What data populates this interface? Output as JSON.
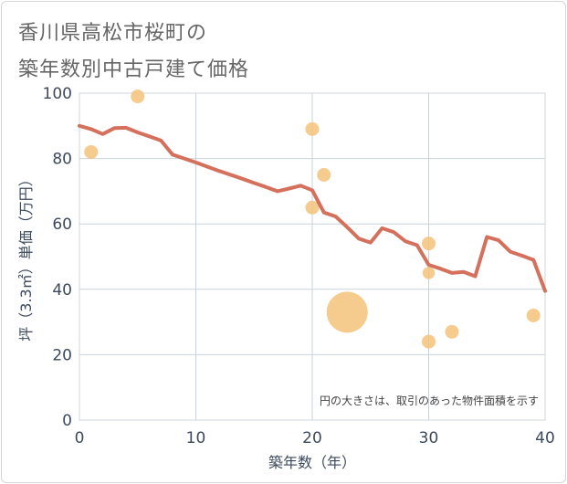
{
  "chart_data": {
    "type": "scatter+line",
    "title_line1": "香川県高松市桜町の",
    "title_line2": "築年数別中古戸建て価格",
    "xlabel": "築年数（年）",
    "ylabel": "坪（3.3㎡）単価（万円）",
    "xlim": [
      0,
      40
    ],
    "ylim": [
      0,
      100
    ],
    "xticks": [
      0,
      10,
      20,
      30,
      40
    ],
    "yticks": [
      0,
      20,
      40,
      60,
      80,
      100
    ],
    "grid": true,
    "annotation": "円の大きさは、取引のあった物件面積を示す",
    "colors": {
      "line": "#d4705c",
      "points": "#f5c27a"
    },
    "points": [
      {
        "x": 1,
        "y": 82,
        "size": 1
      },
      {
        "x": 5,
        "y": 99,
        "size": 1
      },
      {
        "x": 20,
        "y": 89,
        "size": 1
      },
      {
        "x": 20,
        "y": 65,
        "size": 1
      },
      {
        "x": 21,
        "y": 75,
        "size": 1
      },
      {
        "x": 23,
        "y": 33,
        "size": 9
      },
      {
        "x": 30,
        "y": 54,
        "size": 1
      },
      {
        "x": 30,
        "y": 45,
        "size": 0.8
      },
      {
        "x": 30,
        "y": 24,
        "size": 1
      },
      {
        "x": 32,
        "y": 27,
        "size": 1
      },
      {
        "x": 39,
        "y": 32,
        "size": 1
      }
    ],
    "line": {
      "x": [
        0,
        1,
        2,
        3,
        4,
        5,
        6,
        7,
        8,
        9,
        10,
        11,
        12,
        13,
        14,
        15,
        16,
        17,
        18,
        19,
        20,
        21,
        22,
        23,
        24,
        25,
        26,
        27,
        28,
        29,
        30,
        31,
        32,
        33,
        34,
        35,
        36,
        37,
        38,
        39,
        40
      ],
      "y": [
        90,
        89,
        87.5,
        89.3,
        89.4,
        88,
        86.8,
        85.5,
        81.2,
        80,
        78.8,
        77.5,
        76.2,
        75,
        73.8,
        72.5,
        71.3,
        70,
        70.8,
        71.7,
        70.3,
        63.5,
        62.3,
        59,
        55.5,
        54.3,
        58.7,
        57.5,
        54.7,
        53.5,
        47.5,
        46.3,
        45,
        45.3,
        44,
        56,
        55,
        51.5,
        50.3,
        49,
        39.5
      ]
    }
  }
}
